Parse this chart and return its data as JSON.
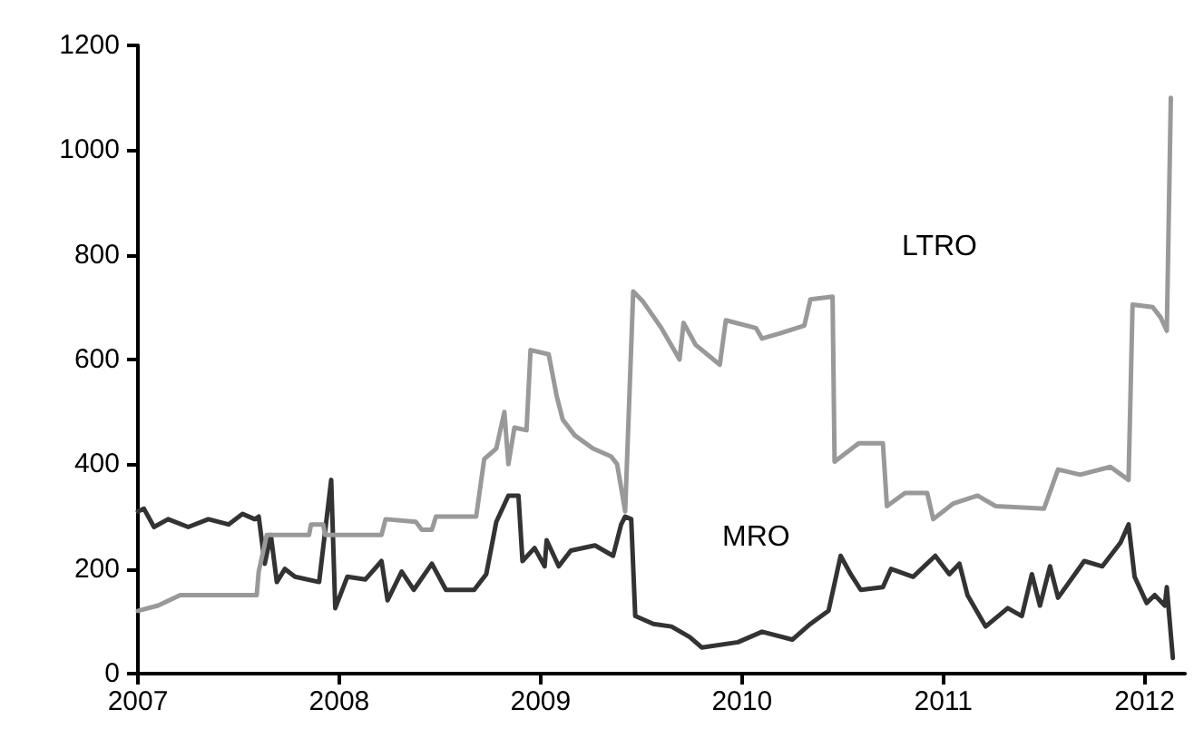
{
  "chart_data": {
    "type": "line",
    "x": [
      2007.0,
      2007.1,
      2007.21,
      2007.59,
      2007.6,
      2007.64,
      2007.85,
      2007.86,
      2007.92,
      2007.93,
      2008.21,
      2008.23,
      2008.38,
      2008.41,
      2008.46,
      2008.48,
      2008.68,
      2008.72,
      2008.78,
      2008.82,
      2008.84,
      2008.87,
      2008.93,
      2008.95,
      2009.04,
      2009.08,
      2009.11,
      2009.17,
      2009.26,
      2009.35,
      2009.38,
      2009.42,
      2009.46,
      2009.51,
      2009.6,
      2009.65,
      2009.69,
      2009.71,
      2009.77,
      2009.89,
      2009.92,
      2010.07,
      2010.1,
      2010.19,
      2010.31,
      2010.34,
      2010.45,
      2010.46,
      2010.58,
      2010.7,
      2010.72,
      2010.81,
      2010.92,
      2010.95,
      2011.05,
      2011.17,
      2011.26,
      2011.5,
      2011.57,
      2011.68,
      2011.83,
      2011.92,
      2011.94,
      2012.04,
      2012.08,
      2012.11,
      2012.13
    ],
    "series": [
      {
        "name": "LTRO",
        "color": "#999999",
        "values": [
          120,
          130,
          150,
          150,
          195,
          265,
          265,
          285,
          285,
          265,
          265,
          295,
          290,
          275,
          275,
          300,
          300,
          410,
          430,
          500,
          400,
          470,
          465,
          618,
          610,
          530,
          485,
          455,
          430,
          415,
          400,
          310,
          730,
          710,
          660,
          627,
          600,
          670,
          628,
          590,
          675,
          660,
          640,
          650,
          665,
          715,
          720,
          405,
          440,
          440,
          320,
          345,
          345,
          295,
          325,
          340,
          320,
          315,
          390,
          380,
          395,
          370,
          705,
          700,
          680,
          655,
          1100
        ]
      },
      {
        "name": "MRO",
        "color": "#333333",
        "x": [
          2007.0,
          2007.03,
          2007.08,
          2007.15,
          2007.25,
          2007.35,
          2007.45,
          2007.52,
          2007.58,
          2007.6,
          2007.63,
          2007.66,
          2007.69,
          2007.73,
          2007.78,
          2007.9,
          2007.96,
          2007.98,
          2008.04,
          2008.13,
          2008.21,
          2008.24,
          2008.31,
          2008.37,
          2008.46,
          2008.53,
          2008.67,
          2008.73,
          2008.78,
          2008.84,
          2008.89,
          2008.91,
          2008.97,
          2009.02,
          2009.03,
          2009.09,
          2009.15,
          2009.27,
          2009.36,
          2009.4,
          2009.42,
          2009.45,
          2009.47,
          2009.56,
          2009.65,
          2009.74,
          2009.8,
          2009.98,
          2010.1,
          2010.25,
          2010.34,
          2010.43,
          2010.49,
          2010.54,
          2010.59,
          2010.7,
          2010.74,
          2010.85,
          2010.96,
          2011.03,
          2011.08,
          2011.12,
          2011.21,
          2011.32,
          2011.39,
          2011.44,
          2011.48,
          2011.53,
          2011.57,
          2011.7,
          2011.79,
          2011.88,
          2011.92,
          2011.95,
          2012.01,
          2012.05,
          2012.1,
          2012.11,
          2012.14
        ],
        "values": [
          310,
          315,
          280,
          295,
          280,
          295,
          285,
          305,
          295,
          300,
          210,
          265,
          175,
          200,
          185,
          175,
          370,
          125,
          185,
          180,
          215,
          140,
          195,
          160,
          210,
          160,
          160,
          190,
          290,
          340,
          340,
          215,
          240,
          205,
          255,
          205,
          235,
          245,
          225,
          285,
          300,
          295,
          110,
          95,
          90,
          70,
          50,
          60,
          80,
          65,
          95,
          120,
          225,
          190,
          160,
          165,
          200,
          185,
          225,
          190,
          210,
          150,
          90,
          125,
          110,
          190,
          130,
          205,
          145,
          215,
          205,
          250,
          285,
          185,
          135,
          150,
          130,
          165,
          30
        ]
      }
    ],
    "xlim": [
      2007,
      2012.2
    ],
    "xticks": [
      2007,
      2008,
      2009,
      2010,
      2011,
      2012
    ],
    "ylim": [
      0,
      1200
    ],
    "yticks": [
      0,
      200,
      400,
      600,
      800,
      1000,
      1200
    ],
    "grid": false,
    "legend": false,
    "marker": "none",
    "line_style": "solid"
  }
}
